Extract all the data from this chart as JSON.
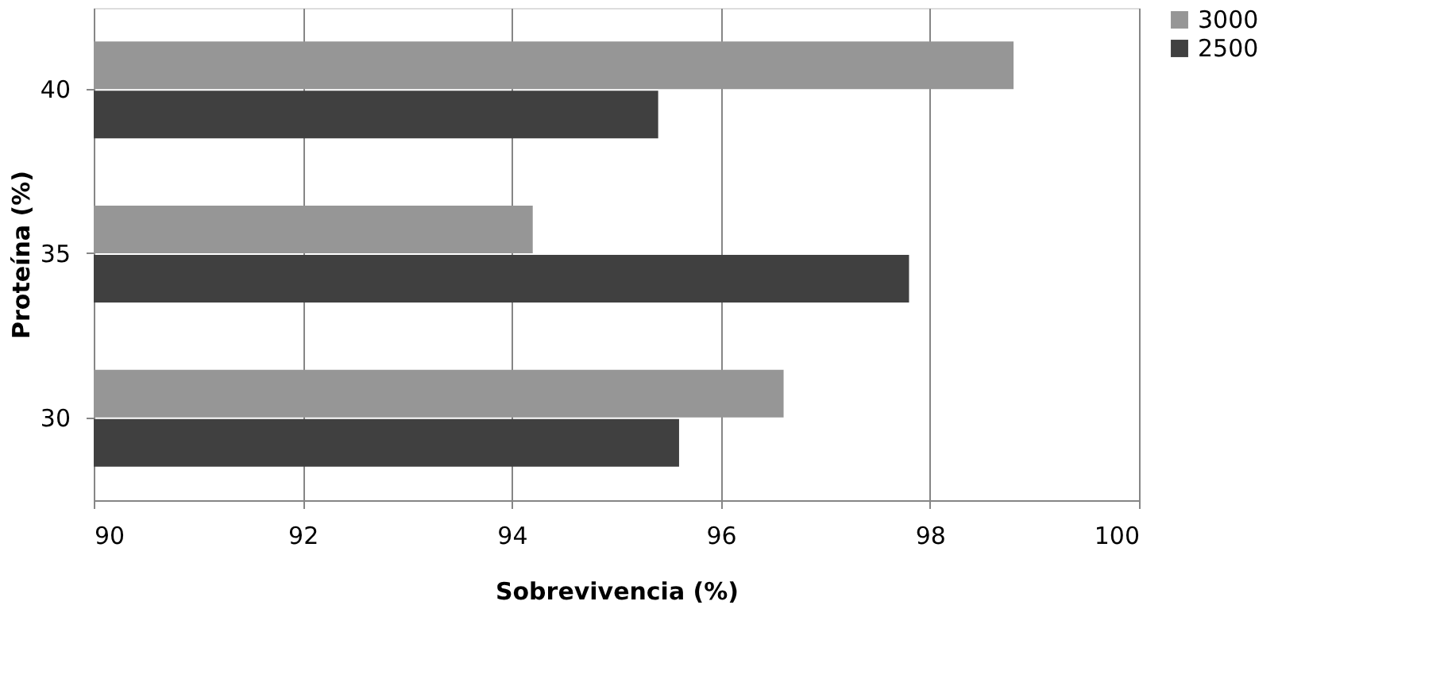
{
  "chart_data": {
    "type": "bar",
    "orientation": "horizontal",
    "xlabel": "Sobrevivencia (%)",
    "ylabel": "Proteína (%)",
    "categories": [
      "40",
      "35",
      "30"
    ],
    "series": [
      {
        "name": "3000",
        "color": "#969696",
        "values": [
          98.8,
          94.2,
          96.6
        ]
      },
      {
        "name": "2500",
        "color": "#404040",
        "values": [
          95.4,
          97.8,
          95.6
        ]
      }
    ],
    "xlim": [
      90,
      100
    ],
    "xticks": [
      90,
      92,
      94,
      96,
      98,
      100
    ],
    "grid": "x",
    "legend": "right"
  }
}
